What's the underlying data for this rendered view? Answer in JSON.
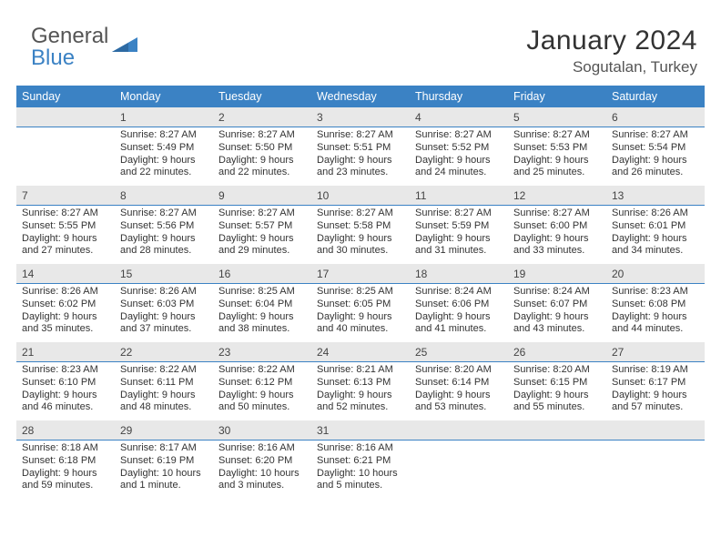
{
  "brand": {
    "text_general": "General",
    "text_blue": "Blue"
  },
  "title": "January 2024",
  "location": "Sogutalan, Turkey",
  "colors": {
    "header_bg": "#3b82c4",
    "daynum_bg": "#e8e8e8",
    "day_border": "#3b82c4"
  },
  "weekdays": [
    "Sunday",
    "Monday",
    "Tuesday",
    "Wednesday",
    "Thursday",
    "Friday",
    "Saturday"
  ],
  "grid": [
    [
      {
        "empty": true
      },
      {
        "day": "1",
        "sunrise": "8:27 AM",
        "sunset": "5:49 PM",
        "daylight": "9 hours and 22 minutes."
      },
      {
        "day": "2",
        "sunrise": "8:27 AM",
        "sunset": "5:50 PM",
        "daylight": "9 hours and 22 minutes."
      },
      {
        "day": "3",
        "sunrise": "8:27 AM",
        "sunset": "5:51 PM",
        "daylight": "9 hours and 23 minutes."
      },
      {
        "day": "4",
        "sunrise": "8:27 AM",
        "sunset": "5:52 PM",
        "daylight": "9 hours and 24 minutes."
      },
      {
        "day": "5",
        "sunrise": "8:27 AM",
        "sunset": "5:53 PM",
        "daylight": "9 hours and 25 minutes."
      },
      {
        "day": "6",
        "sunrise": "8:27 AM",
        "sunset": "5:54 PM",
        "daylight": "9 hours and 26 minutes."
      }
    ],
    [
      {
        "day": "7",
        "sunrise": "8:27 AM",
        "sunset": "5:55 PM",
        "daylight": "9 hours and 27 minutes."
      },
      {
        "day": "8",
        "sunrise": "8:27 AM",
        "sunset": "5:56 PM",
        "daylight": "9 hours and 28 minutes."
      },
      {
        "day": "9",
        "sunrise": "8:27 AM",
        "sunset": "5:57 PM",
        "daylight": "9 hours and 29 minutes."
      },
      {
        "day": "10",
        "sunrise": "8:27 AM",
        "sunset": "5:58 PM",
        "daylight": "9 hours and 30 minutes."
      },
      {
        "day": "11",
        "sunrise": "8:27 AM",
        "sunset": "5:59 PM",
        "daylight": "9 hours and 31 minutes."
      },
      {
        "day": "12",
        "sunrise": "8:27 AM",
        "sunset": "6:00 PM",
        "daylight": "9 hours and 33 minutes."
      },
      {
        "day": "13",
        "sunrise": "8:26 AM",
        "sunset": "6:01 PM",
        "daylight": "9 hours and 34 minutes."
      }
    ],
    [
      {
        "day": "14",
        "sunrise": "8:26 AM",
        "sunset": "6:02 PM",
        "daylight": "9 hours and 35 minutes."
      },
      {
        "day": "15",
        "sunrise": "8:26 AM",
        "sunset": "6:03 PM",
        "daylight": "9 hours and 37 minutes."
      },
      {
        "day": "16",
        "sunrise": "8:25 AM",
        "sunset": "6:04 PM",
        "daylight": "9 hours and 38 minutes."
      },
      {
        "day": "17",
        "sunrise": "8:25 AM",
        "sunset": "6:05 PM",
        "daylight": "9 hours and 40 minutes."
      },
      {
        "day": "18",
        "sunrise": "8:24 AM",
        "sunset": "6:06 PM",
        "daylight": "9 hours and 41 minutes."
      },
      {
        "day": "19",
        "sunrise": "8:24 AM",
        "sunset": "6:07 PM",
        "daylight": "9 hours and 43 minutes."
      },
      {
        "day": "20",
        "sunrise": "8:23 AM",
        "sunset": "6:08 PM",
        "daylight": "9 hours and 44 minutes."
      }
    ],
    [
      {
        "day": "21",
        "sunrise": "8:23 AM",
        "sunset": "6:10 PM",
        "daylight": "9 hours and 46 minutes."
      },
      {
        "day": "22",
        "sunrise": "8:22 AM",
        "sunset": "6:11 PM",
        "daylight": "9 hours and 48 minutes."
      },
      {
        "day": "23",
        "sunrise": "8:22 AM",
        "sunset": "6:12 PM",
        "daylight": "9 hours and 50 minutes."
      },
      {
        "day": "24",
        "sunrise": "8:21 AM",
        "sunset": "6:13 PM",
        "daylight": "9 hours and 52 minutes."
      },
      {
        "day": "25",
        "sunrise": "8:20 AM",
        "sunset": "6:14 PM",
        "daylight": "9 hours and 53 minutes."
      },
      {
        "day": "26",
        "sunrise": "8:20 AM",
        "sunset": "6:15 PM",
        "daylight": "9 hours and 55 minutes."
      },
      {
        "day": "27",
        "sunrise": "8:19 AM",
        "sunset": "6:17 PM",
        "daylight": "9 hours and 57 minutes."
      }
    ],
    [
      {
        "day": "28",
        "sunrise": "8:18 AM",
        "sunset": "6:18 PM",
        "daylight": "9 hours and 59 minutes."
      },
      {
        "day": "29",
        "sunrise": "8:17 AM",
        "sunset": "6:19 PM",
        "daylight": "10 hours and 1 minute."
      },
      {
        "day": "30",
        "sunrise": "8:16 AM",
        "sunset": "6:20 PM",
        "daylight": "10 hours and 3 minutes."
      },
      {
        "day": "31",
        "sunrise": "8:16 AM",
        "sunset": "6:21 PM",
        "daylight": "10 hours and 5 minutes."
      },
      {
        "empty": true
      },
      {
        "empty": true
      },
      {
        "empty": true
      }
    ]
  ],
  "labels": {
    "sunrise": "Sunrise:",
    "sunset": "Sunset:",
    "daylight": "Daylight:"
  }
}
